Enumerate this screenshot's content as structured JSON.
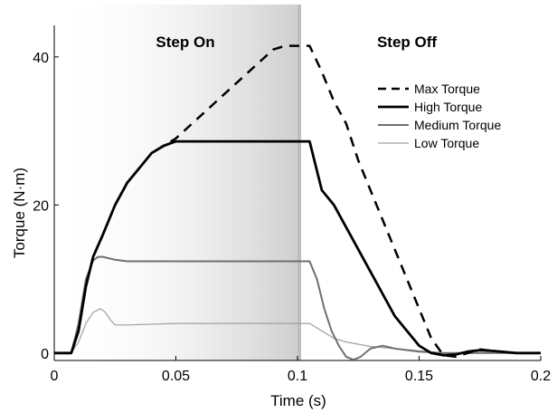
{
  "chart_data": {
    "type": "line",
    "title": "",
    "xlabel": "Time (s)",
    "ylabel": "Torque (N·m)",
    "xlim": [
      0,
      0.2
    ],
    "ylim": [
      -1,
      45
    ],
    "x_ticks": [
      {
        "value": 0,
        "label": "0"
      },
      {
        "value": 0.05,
        "label": "0.05"
      },
      {
        "value": 0.1,
        "label": "0.1"
      },
      {
        "value": 0.15,
        "label": "0.15"
      },
      {
        "value": 0.2,
        "label": "0.2"
      }
    ],
    "y_ticks": [
      {
        "value": 0,
        "label": "0"
      },
      {
        "value": 20,
        "label": "20"
      },
      {
        "value": 40,
        "label": "40"
      }
    ],
    "grid": false,
    "legend_position": "right",
    "phases": [
      {
        "label": "Step On",
        "x_start": 0,
        "x_end": 0.1,
        "shaded": true
      },
      {
        "label": "Step Off",
        "x_start": 0.1,
        "x_end": 0.2,
        "shaded": false
      }
    ],
    "series": [
      {
        "name": "Max Torque",
        "color": "#000000",
        "style": "dashed",
        "x": [
          0,
          0.007,
          0.01,
          0.013,
          0.016,
          0.02,
          0.025,
          0.03,
          0.035,
          0.04,
          0.045,
          0.05,
          0.06,
          0.07,
          0.08,
          0.09,
          0.095,
          0.105,
          0.11,
          0.115,
          0.12,
          0.125,
          0.13,
          0.14,
          0.15,
          0.155,
          0.16,
          0.165,
          0.17,
          0.175,
          0.18,
          0.19,
          0.2
        ],
        "y": [
          0,
          0,
          3,
          9,
          13,
          16,
          20,
          23,
          25,
          27,
          28,
          29,
          32,
          35,
          38,
          41,
          41.5,
          41.5,
          38,
          34,
          31,
          26,
          22,
          14,
          6,
          2,
          -0.3,
          -0.5,
          0,
          0.5,
          0.3,
          0,
          0
        ]
      },
      {
        "name": "High Torque",
        "color": "#000000",
        "style": "solid",
        "x": [
          0,
          0.007,
          0.01,
          0.013,
          0.016,
          0.02,
          0.025,
          0.03,
          0.035,
          0.04,
          0.045,
          0.05,
          0.06,
          0.08,
          0.1,
          0.105,
          0.11,
          0.115,
          0.12,
          0.13,
          0.14,
          0.15,
          0.155,
          0.16,
          0.165,
          0.17,
          0.175,
          0.18,
          0.19,
          0.2
        ],
        "y": [
          0,
          0,
          3,
          9,
          13,
          16,
          20,
          23,
          25,
          27,
          28,
          28.6,
          28.6,
          28.6,
          28.6,
          28.6,
          22,
          20,
          17,
          11,
          5,
          1,
          0,
          -0.3,
          -0.2,
          0.2,
          0.4,
          0.3,
          0,
          0
        ]
      },
      {
        "name": "Medium Torque",
        "color": "#707070",
        "style": "solid",
        "x": [
          0,
          0.007,
          0.01,
          0.013,
          0.016,
          0.018,
          0.02,
          0.025,
          0.03,
          0.05,
          0.07,
          0.09,
          0.1,
          0.105,
          0.108,
          0.111,
          0.114,
          0.117,
          0.12,
          0.123,
          0.126,
          0.13,
          0.135,
          0.14,
          0.15,
          0.16,
          0.17,
          0.18,
          0.19,
          0.2
        ],
        "y": [
          0,
          0,
          4,
          10,
          12.5,
          13,
          13,
          12.6,
          12.4,
          12.4,
          12.4,
          12.4,
          12.4,
          12.4,
          10,
          6,
          3,
          1,
          -0.5,
          -0.9,
          -0.5,
          0.6,
          1,
          0.6,
          0.2,
          0,
          0,
          0,
          0,
          0
        ]
      },
      {
        "name": "Low Torque",
        "color": "#a0a0a0",
        "style": "solid",
        "x": [
          0,
          0.007,
          0.01,
          0.013,
          0.016,
          0.019,
          0.021,
          0.023,
          0.025,
          0.03,
          0.05,
          0.08,
          0.1,
          0.105,
          0.11,
          0.115,
          0.12,
          0.13,
          0.14,
          0.15,
          0.16,
          0.2
        ],
        "y": [
          0,
          0,
          1.5,
          4,
          5.5,
          6,
          5.5,
          4.5,
          3.8,
          3.8,
          4,
          4,
          4,
          4,
          3,
          2,
          1.5,
          0.9,
          0.6,
          0.3,
          0,
          0
        ]
      }
    ]
  }
}
